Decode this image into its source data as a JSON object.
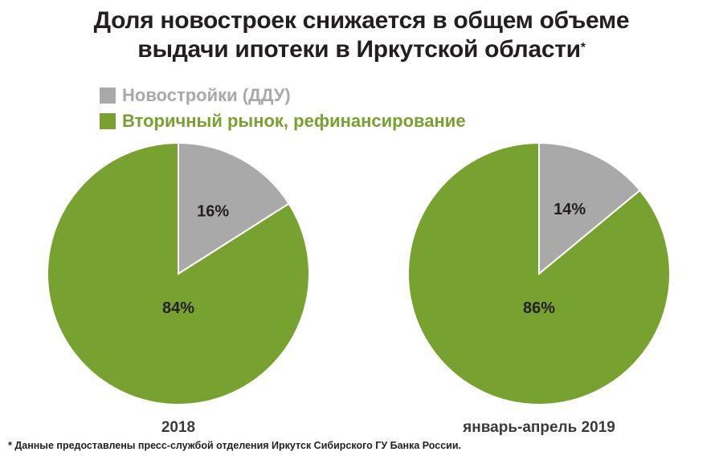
{
  "title": {
    "line1": "Доля новостроек снижается в общем объеме",
    "line2": "выдачи ипотеки в Иркутской области",
    "mark": "*"
  },
  "colors": {
    "new_buildings": "#a9a9a9",
    "secondary": "#78a22f",
    "text": "#231f20"
  },
  "legend": [
    {
      "label": "Новостройки (ДДУ)",
      "color": "#a9a9a9"
    },
    {
      "label": "Вторичный рынок, рефинансирование",
      "color": "#78a22f"
    }
  ],
  "chart_data": [
    {
      "type": "pie",
      "caption": "2018",
      "slices": [
        {
          "label": "16%",
          "value": 16,
          "color": "#a9a9a9"
        },
        {
          "label": "84%",
          "value": 84,
          "color": "#78a22f"
        }
      ]
    },
    {
      "type": "pie",
      "caption": "январь-апрель 2019",
      "slices": [
        {
          "label": "14%",
          "value": 14,
          "color": "#a9a9a9"
        },
        {
          "label": "86%",
          "value": 86,
          "color": "#78a22f"
        }
      ]
    }
  ],
  "footnote": "* Данные предоставлены пресс-службой отделения Иркутск Сибирского ГУ Банка России."
}
